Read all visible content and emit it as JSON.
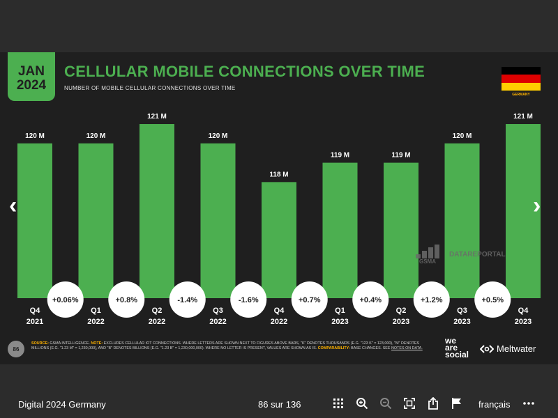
{
  "slide": {
    "badge_month": "JAN",
    "badge_year": "2024",
    "title": "CELLULAR MOBILE CONNECTIONS OVER TIME",
    "subtitle": "NUMBER OF MOBILE CELLULAR CONNECTIONS OVER TIME",
    "country": "GERMANY",
    "flag_colors": [
      "#000000",
      "#dd0000",
      "#ffce00"
    ],
    "watermark_gsma": "GSMA",
    "watermark_datareportal": "DATAREPORTAL",
    "page_number": "86",
    "source_label": "SOURCE:",
    "source_text": "GSMA INTELLIGENCE.",
    "note_label": "NOTE:",
    "note_text": "EXCLUDES CELLULAR IOT CONNECTIONS. WHERE LETTERS ARE SHOWN NEXT TO FIGURES ABOVE BARS, \"K\" DENOTES THOUSANDS (E.G. \"123 K\" = 123,000), \"M\" DENOTES MILLIONS (E.G. \"1.23 M\" = 1,230,000), AND \"B\" DENOTES BILLIONS (E.G. \"1.23 B\" = 1,230,000,000). WHERE NO LETTER IS PRESENT, VALUES ARE SHOWN AS IS.",
    "comparability_label": "COMPARABILITY:",
    "comparability_text": "BASE CHANGES. SEE",
    "notes_link": "NOTES ON DATA.",
    "brand_we": "we",
    "brand_are": "are",
    "brand_social": "social",
    "brand_meltwater": "Meltwater",
    "accent_color": "#4caf50"
  },
  "chart_data": {
    "type": "bar",
    "categories": [
      [
        "Q4",
        "2021"
      ],
      [
        "Q1",
        "2022"
      ],
      [
        "Q2",
        "2022"
      ],
      [
        "Q3",
        "2022"
      ],
      [
        "Q4",
        "2022"
      ],
      [
        "Q1",
        "2023"
      ],
      [
        "Q2",
        "2023"
      ],
      [
        "Q3",
        "2023"
      ],
      [
        "Q4",
        "2023"
      ]
    ],
    "values": [
      120,
      120,
      121,
      120,
      118,
      119,
      119,
      120,
      121
    ],
    "value_labels": [
      "120 M",
      "120 M",
      "121 M",
      "120 M",
      "118 M",
      "119 M",
      "119 M",
      "120 M",
      "121 M"
    ],
    "changes": [
      "+0.06%",
      "+0.8%",
      "-1.4%",
      "-1.6%",
      "+0.7%",
      "+0.4%",
      "+1.2%",
      "+0.5%"
    ],
    "unit": "M",
    "bar_color": "#4caf50"
  },
  "toolbar": {
    "doc_title": "Digital 2024 Germany",
    "page_counter": "86 sur 136",
    "language": "français",
    "icons": [
      "grid-icon",
      "zoom-in-icon",
      "zoom-out-icon",
      "fullscreen-icon",
      "share-icon",
      "flag-icon",
      "more-icon"
    ]
  }
}
